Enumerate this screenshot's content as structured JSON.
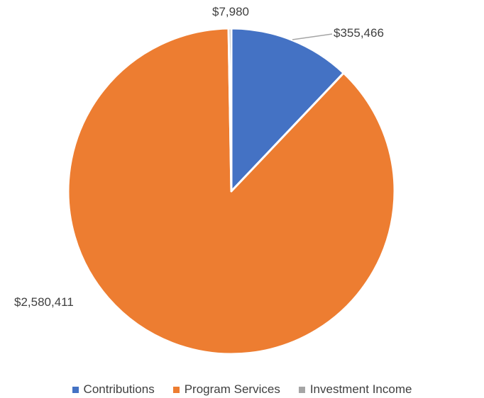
{
  "chart_data": {
    "type": "pie",
    "categories": [
      "Contributions",
      "Program Services",
      "Investment Income"
    ],
    "values": [
      355466,
      2580411,
      7980
    ],
    "data_labels": [
      "$355,466",
      "$2,580,411",
      "$7,980"
    ],
    "colors": [
      "#4472C4",
      "#ED7D31",
      "#A5A5A5"
    ],
    "legend_position": "bottom"
  }
}
